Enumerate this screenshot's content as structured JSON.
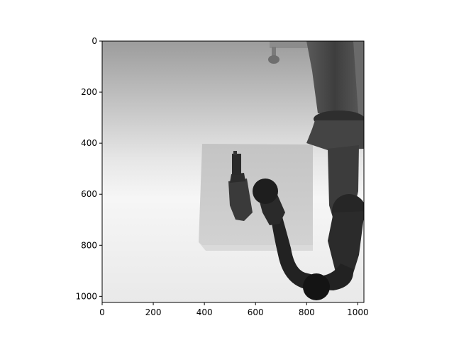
{
  "chart_data": {
    "type": "heatmap",
    "title": "",
    "xlabel": "",
    "ylabel": "",
    "xlim": [
      0,
      1024
    ],
    "ylim": [
      1024,
      0
    ],
    "x_ticks": [
      0,
      200,
      400,
      600,
      800,
      1000
    ],
    "y_ticks": [
      0,
      200,
      400,
      600,
      800,
      1000
    ],
    "colormap": "gray",
    "grid": false,
    "content": "depth image of a robot arm with gripper above a table",
    "colors": {
      "far_background": "#fafafa",
      "near_background": "#9c9c9c",
      "table_top": "#c8c8c8",
      "table_edge": "#dcdcdc",
      "robot_dark": "#1a1a1a",
      "robot_mid": "#4a4a4a",
      "robot_light": "#6a6a6a"
    }
  }
}
